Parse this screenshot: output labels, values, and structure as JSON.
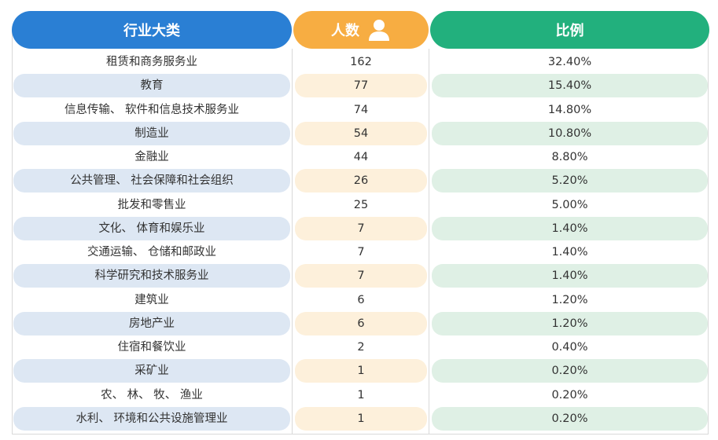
{
  "header": {
    "industry": "行业大类",
    "count": "人数",
    "count_icon": "person-icon",
    "ratio": "比例"
  },
  "colors": {
    "industry_header": "#2a7fd4",
    "count_header": "#f7ad42",
    "ratio_header": "#22b07d",
    "industry_shade": "#dde7f3",
    "count_shade": "#fdf0db",
    "ratio_shade": "#dff0e5"
  },
  "rows": [
    {
      "industry": "租赁和商务服务业",
      "count": "162",
      "ratio": "32.40%"
    },
    {
      "industry": "教育",
      "count": "77",
      "ratio": "15.40%"
    },
    {
      "industry": "信息传输、 软件和信息技术服务业",
      "count": "74",
      "ratio": "14.80%"
    },
    {
      "industry": "制造业",
      "count": "54",
      "ratio": "10.80%"
    },
    {
      "industry": "金融业",
      "count": "44",
      "ratio": "8.80%"
    },
    {
      "industry": "公共管理、 社会保障和社会组织",
      "count": "26",
      "ratio": "5.20%"
    },
    {
      "industry": "批发和零售业",
      "count": "25",
      "ratio": "5.00%"
    },
    {
      "industry": "文化、 体育和娱乐业",
      "count": "7",
      "ratio": "1.40%"
    },
    {
      "industry": "交通运输、 仓储和邮政业",
      "count": "7",
      "ratio": "1.40%"
    },
    {
      "industry": "科学研究和技术服务业",
      "count": "7",
      "ratio": "1.40%"
    },
    {
      "industry": "建筑业",
      "count": "6",
      "ratio": "1.20%"
    },
    {
      "industry": "房地产业",
      "count": "6",
      "ratio": "1.20%"
    },
    {
      "industry": "住宿和餐饮业",
      "count": "2",
      "ratio": "0.40%"
    },
    {
      "industry": "采矿业",
      "count": "1",
      "ratio": "0.20%"
    },
    {
      "industry": "农、 林、 牧、 渔业",
      "count": "1",
      "ratio": "0.20%"
    },
    {
      "industry": "水利、 环境和公共设施管理业",
      "count": "1",
      "ratio": "0.20%"
    }
  ]
}
